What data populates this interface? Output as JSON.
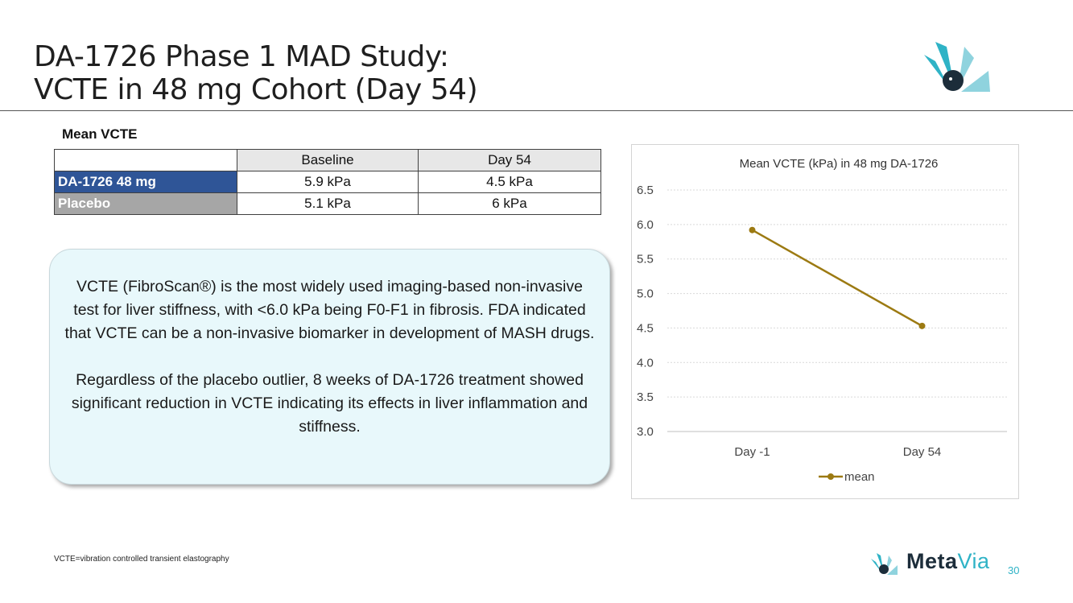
{
  "slide": {
    "title_line1": "DA-1726 Phase 1 MAD Study:",
    "title_line2": "VCTE in 48 mg Cohort (Day 54)",
    "section_label": "Mean VCTE",
    "footnote": "VCTE=vibration controlled transient elastography",
    "page_number": "30"
  },
  "table": {
    "headers": [
      "",
      "Baseline",
      "Day 54"
    ],
    "rows": [
      {
        "label": "DA-1726 48 mg",
        "baseline": "5.9 kPa",
        "day54": "4.5 kPa",
        "color": "#2f5597"
      },
      {
        "label": "Placebo",
        "baseline": "5.1 kPa",
        "day54": "6 kPa",
        "color": "#a6a6a6"
      }
    ]
  },
  "callout": {
    "paragraph1": "VCTE (FibroScan®) is the most widely used imaging-based non-invasive test for liver stiffness, with <6.0 kPa being F0-F1 in fibrosis. FDA indicated that VCTE can be a non-invasive biomarker in development of MASH drugs.",
    "paragraph2": "Regardless of the placebo outlier, 8 weeks of DA-1726 treatment showed significant reduction in VCTE indicating its effects in liver inflammation and stiffness."
  },
  "brand": {
    "name_part1": "Meta",
    "name_part2": "Via",
    "colors": {
      "dark": "#1c2d3a",
      "teal": "#2fb3c6",
      "light_teal": "#8fd3de"
    }
  },
  "chart_data": {
    "type": "line",
    "title": "Mean VCTE (kPa) in 48 mg DA-1726",
    "categories": [
      "Day -1",
      "Day 54"
    ],
    "series": [
      {
        "name": "mean",
        "values": [
          5.92,
          4.53
        ],
        "color": "#9c7a12"
      }
    ],
    "ylim": [
      3.0,
      6.5
    ],
    "yticks": [
      "3.0",
      "3.5",
      "4.0",
      "4.5",
      "5.0",
      "5.5",
      "6.0",
      "6.5"
    ],
    "xlabel": "",
    "ylabel": "",
    "grid": true,
    "legend": "bottom"
  }
}
